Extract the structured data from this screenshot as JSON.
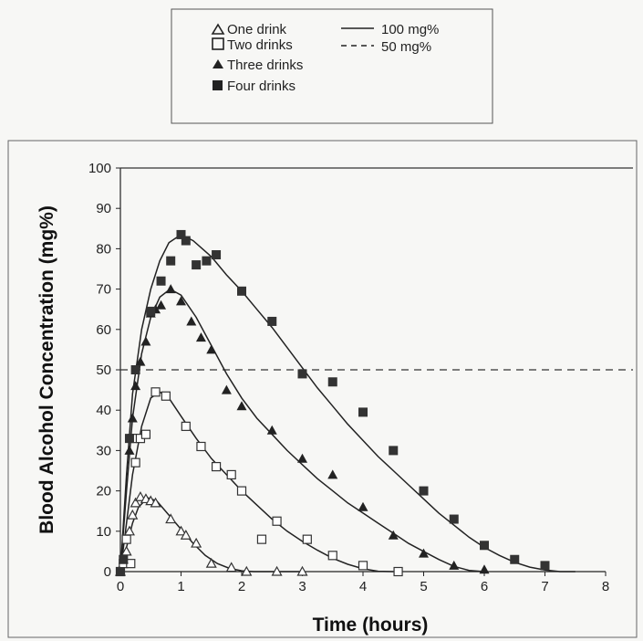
{
  "chart_data": {
    "type": "scatter",
    "xlabel": "Time (hours)",
    "ylabel": "Blood Alcohol Concentration (mg%)",
    "xlim": [
      0,
      8
    ],
    "ylim": [
      0,
      100
    ],
    "xticks": [
      0,
      1,
      2,
      3,
      4,
      5,
      6,
      7,
      8
    ],
    "yticks": [
      0,
      10,
      20,
      30,
      40,
      50,
      60,
      70,
      80,
      90,
      100
    ],
    "grid": false,
    "legend_position": "top",
    "reference_lines": [
      {
        "name": "100 mg%",
        "y": 100,
        "style": "solid"
      },
      {
        "name": "50 mg%",
        "y": 50,
        "style": "dashed"
      }
    ],
    "series": [
      {
        "name": "One drink",
        "marker": "open-triangle",
        "points": [
          [
            0,
            0
          ],
          [
            0.05,
            2
          ],
          [
            0.1,
            5
          ],
          [
            0.15,
            10
          ],
          [
            0.2,
            14
          ],
          [
            0.25,
            17
          ],
          [
            0.33,
            18.5
          ],
          [
            0.42,
            18
          ],
          [
            0.5,
            17.5
          ],
          [
            0.58,
            17
          ],
          [
            0.83,
            13
          ],
          [
            1.0,
            10
          ],
          [
            1.08,
            9
          ],
          [
            1.25,
            7
          ],
          [
            1.5,
            2
          ],
          [
            1.83,
            1
          ],
          [
            2.08,
            0
          ],
          [
            2.58,
            0
          ],
          [
            3.0,
            0
          ]
        ],
        "curve": [
          [
            0,
            0
          ],
          [
            0.1,
            6
          ],
          [
            0.2,
            12
          ],
          [
            0.3,
            16
          ],
          [
            0.45,
            18.3
          ],
          [
            0.6,
            17.5
          ],
          [
            0.8,
            14
          ],
          [
            1.0,
            10.5
          ],
          [
            1.2,
            7
          ],
          [
            1.4,
            4
          ],
          [
            1.6,
            2
          ],
          [
            1.8,
            0.8
          ],
          [
            2.0,
            0.2
          ],
          [
            2.2,
            0
          ],
          [
            3.0,
            0
          ]
        ]
      },
      {
        "name": "Two drinks",
        "marker": "open-square",
        "points": [
          [
            0,
            0
          ],
          [
            0.05,
            2
          ],
          [
            0.1,
            8
          ],
          [
            0.17,
            2
          ],
          [
            0.2,
            33
          ],
          [
            0.25,
            27
          ],
          [
            0.33,
            33
          ],
          [
            0.42,
            34
          ],
          [
            0.58,
            44.5
          ],
          [
            0.75,
            43.5
          ],
          [
            1.08,
            36
          ],
          [
            1.33,
            31
          ],
          [
            1.58,
            26
          ],
          [
            1.83,
            24
          ],
          [
            2.0,
            20
          ],
          [
            2.33,
            8
          ],
          [
            2.58,
            12.5
          ],
          [
            3.08,
            8
          ],
          [
            3.5,
            4
          ],
          [
            4.0,
            1.5
          ],
          [
            4.58,
            0
          ]
        ],
        "curve": [
          [
            0,
            0
          ],
          [
            0.1,
            12
          ],
          [
            0.2,
            24
          ],
          [
            0.35,
            36
          ],
          [
            0.5,
            43
          ],
          [
            0.65,
            44.5
          ],
          [
            0.8,
            43
          ],
          [
            1.0,
            38.5
          ],
          [
            1.25,
            33
          ],
          [
            1.5,
            28
          ],
          [
            1.75,
            24
          ],
          [
            2.0,
            20
          ],
          [
            2.25,
            16.5
          ],
          [
            2.5,
            13
          ],
          [
            2.75,
            10
          ],
          [
            3.0,
            7.5
          ],
          [
            3.25,
            5.3
          ],
          [
            3.5,
            3.3
          ],
          [
            3.75,
            1.8
          ],
          [
            4.0,
            0.7
          ],
          [
            4.25,
            0.1
          ],
          [
            4.5,
            0
          ]
        ]
      },
      {
        "name": "Three drinks",
        "marker": "filled-triangle",
        "points": [
          [
            0,
            0
          ],
          [
            0.05,
            3
          ],
          [
            0.15,
            30
          ],
          [
            0.2,
            38
          ],
          [
            0.25,
            46
          ],
          [
            0.33,
            52
          ],
          [
            0.42,
            57
          ],
          [
            0.5,
            64
          ],
          [
            0.58,
            65
          ],
          [
            0.67,
            66
          ],
          [
            0.83,
            70
          ],
          [
            1.0,
            67
          ],
          [
            1.17,
            62
          ],
          [
            1.33,
            58
          ],
          [
            1.5,
            55
          ],
          [
            1.75,
            45
          ],
          [
            2.0,
            41
          ],
          [
            2.5,
            35
          ],
          [
            3.0,
            28
          ],
          [
            3.5,
            24
          ],
          [
            4.0,
            16
          ],
          [
            4.5,
            9
          ],
          [
            5.0,
            4.5
          ],
          [
            5.5,
            1.5
          ],
          [
            6.0,
            0.5
          ]
        ],
        "curve": [
          [
            0,
            0
          ],
          [
            0.1,
            20
          ],
          [
            0.2,
            38
          ],
          [
            0.35,
            54
          ],
          [
            0.5,
            63
          ],
          [
            0.65,
            68
          ],
          [
            0.82,
            70
          ],
          [
            1.0,
            68.5
          ],
          [
            1.25,
            63
          ],
          [
            1.5,
            56
          ],
          [
            1.75,
            49
          ],
          [
            2.0,
            43
          ],
          [
            2.25,
            38
          ],
          [
            2.5,
            34
          ],
          [
            2.75,
            30
          ],
          [
            3.0,
            26.5
          ],
          [
            3.25,
            23
          ],
          [
            3.5,
            20
          ],
          [
            3.75,
            17
          ],
          [
            4.0,
            14.5
          ],
          [
            4.25,
            12
          ],
          [
            4.5,
            9.5
          ],
          [
            4.75,
            7
          ],
          [
            5.0,
            5
          ],
          [
            5.25,
            3
          ],
          [
            5.5,
            1.3
          ],
          [
            5.75,
            0.3
          ],
          [
            6.0,
            0
          ]
        ]
      },
      {
        "name": "Four drinks",
        "marker": "filled-square",
        "points": [
          [
            0,
            0
          ],
          [
            0.05,
            3
          ],
          [
            0.15,
            33
          ],
          [
            0.25,
            50
          ],
          [
            0.5,
            64.5
          ],
          [
            0.67,
            72
          ],
          [
            0.83,
            77
          ],
          [
            1.0,
            83.5
          ],
          [
            1.08,
            82
          ],
          [
            1.25,
            76
          ],
          [
            1.42,
            77
          ],
          [
            1.58,
            78.5
          ],
          [
            2.0,
            69.5
          ],
          [
            2.5,
            62
          ],
          [
            3.0,
            49
          ],
          [
            3.5,
            47
          ],
          [
            4.0,
            39.5
          ],
          [
            4.5,
            30
          ],
          [
            5.0,
            20
          ],
          [
            5.5,
            13
          ],
          [
            6.0,
            6.5
          ],
          [
            6.5,
            3
          ],
          [
            7.0,
            1.5
          ]
        ],
        "curve": [
          [
            0,
            0
          ],
          [
            0.1,
            24
          ],
          [
            0.2,
            44
          ],
          [
            0.35,
            60
          ],
          [
            0.5,
            70
          ],
          [
            0.65,
            77
          ],
          [
            0.8,
            81.5
          ],
          [
            1.0,
            83.5
          ],
          [
            1.2,
            82
          ],
          [
            1.5,
            78
          ],
          [
            1.75,
            73.5
          ],
          [
            2.0,
            69.5
          ],
          [
            2.25,
            65
          ],
          [
            2.5,
            60.5
          ],
          [
            2.75,
            55.5
          ],
          [
            3.0,
            50.5
          ],
          [
            3.25,
            45.5
          ],
          [
            3.5,
            41
          ],
          [
            3.75,
            36.5
          ],
          [
            4.0,
            32.5
          ],
          [
            4.25,
            28.5
          ],
          [
            4.5,
            25
          ],
          [
            4.75,
            21.5
          ],
          [
            5.0,
            18
          ],
          [
            5.25,
            14.5
          ],
          [
            5.5,
            11.5
          ],
          [
            5.75,
            8.5
          ],
          [
            6.0,
            6
          ],
          [
            6.25,
            4
          ],
          [
            6.5,
            2.3
          ],
          [
            6.75,
            1.1
          ],
          [
            7.0,
            0.4
          ],
          [
            7.25,
            0
          ],
          [
            7.5,
            0
          ]
        ]
      }
    ]
  }
}
